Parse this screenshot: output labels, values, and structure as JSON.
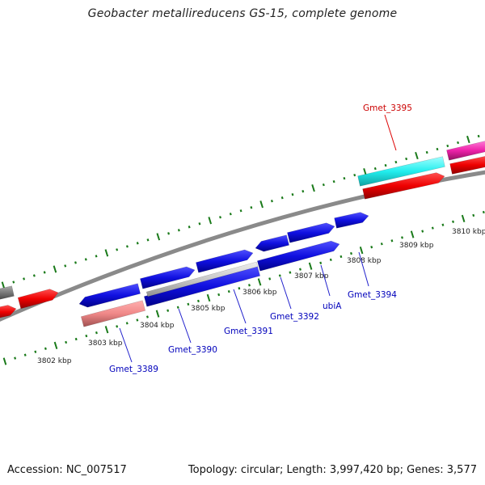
{
  "title": "Geobacter metallireducens GS-15, complete genome",
  "footer": {
    "accession": "Accession: NC_007517",
    "summary": "Topology: circular; Length: 3,997,420 bp; Genes: 3,577"
  },
  "ticks": [
    "3802 kbp",
    "3803 kbp",
    "3804 kbp",
    "3805 kbp",
    "3806 kbp",
    "3807 kbp",
    "3808 kbp",
    "3809 kbp",
    "3810 kbp"
  ],
  "genes": [
    {
      "name": "Gmet_3389",
      "color": "#0000bb"
    },
    {
      "name": "Gmet_3390",
      "color": "#0000bb"
    },
    {
      "name": "Gmet_3391",
      "color": "#0000bb"
    },
    {
      "name": "Gmet_3392",
      "color": "#0000bb"
    },
    {
      "name": "ubiA",
      "color": "#0000bb"
    },
    {
      "name": "Gmet_3394",
      "color": "#0000bb"
    },
    {
      "name": "Gmet_3395",
      "color": "#cc0000"
    }
  ],
  "colors": {
    "backbone": "#888888",
    "tick": "#1a7a1a",
    "blue_feature": "#1010e0",
    "red_feature": "#ee0000",
    "pink_feature": "#f08888",
    "cyan_feature": "#22eeee",
    "magenta_feature": "#ee22aa",
    "gray_feature": "#777777",
    "light_gray_feature": "#c8c8c8"
  }
}
